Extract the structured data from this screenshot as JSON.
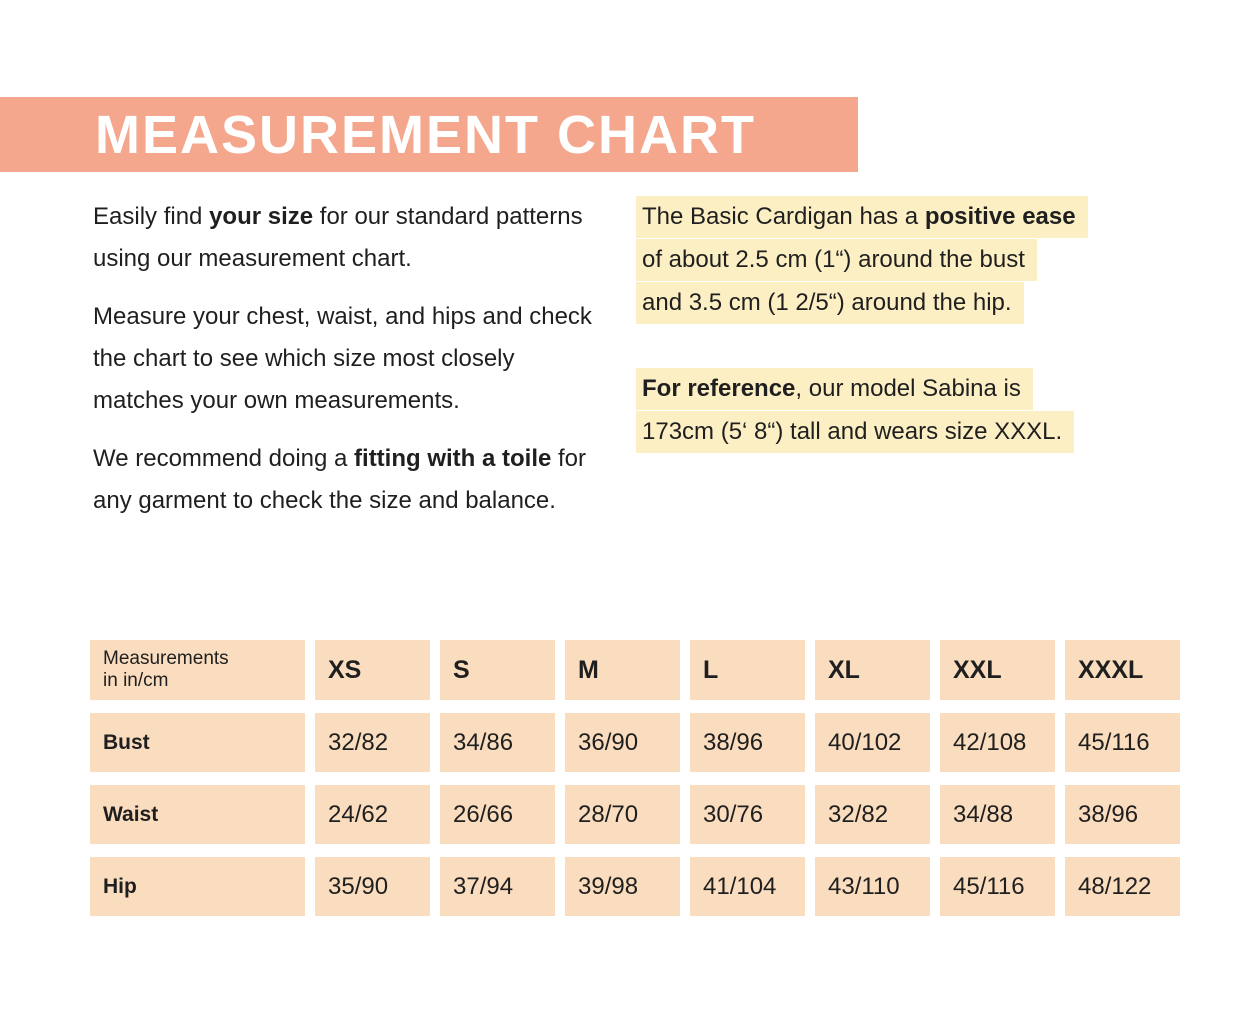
{
  "colors": {
    "banner": "#f4a78c",
    "table_cell": "#fadcbe",
    "highlight": "#fcefc3",
    "text": "#1f1f1f",
    "title_text": "#ffffff"
  },
  "header": {
    "title": "MEASUREMENT CHART"
  },
  "intro": {
    "p1_pre": "Easily find ",
    "p1_bold": "your size",
    "p1_post": " for our standard patterns using our measurement chart.",
    "p2": "Measure your chest, waist, and hips and check the chart to see which size most closely matches your own measurements.",
    "p3_pre": "We recommend doing a ",
    "p3_bold": "fitting with a toile",
    "p3_post": " for any garment to check the size and balance."
  },
  "ease_note": {
    "line1_pre": "The Basic Cardigan has a ",
    "line1_bold": "positive ease",
    "line2": "of about 2.5 cm (1“) around the bust",
    "line3": "and 3.5 cm (1 2/5“) around the hip."
  },
  "reference_note": {
    "line1_bold": "For reference",
    "line1_post": ", our model Sabina is",
    "line2": "173cm (5‘ 8“) tall and wears size XXXL."
  },
  "table": {
    "corner_line1": "Measurements",
    "corner_line2": "in in/cm",
    "sizes": [
      "XS",
      "S",
      "M",
      "L",
      "XL",
      "XXL",
      "XXXL"
    ],
    "rows": [
      {
        "label": "Bust",
        "values": [
          "32/82",
          "34/86",
          "36/90",
          "38/96",
          "40/102",
          "42/108",
          "45/116"
        ]
      },
      {
        "label": "Waist",
        "values": [
          "24/62",
          "26/66",
          "28/70",
          "30/76",
          "32/82",
          "34/88",
          "38/96"
        ]
      },
      {
        "label": "Hip",
        "values": [
          "35/90",
          "37/94",
          "39/98",
          "41/104",
          "43/110",
          "45/116",
          "48/122"
        ]
      }
    ]
  }
}
